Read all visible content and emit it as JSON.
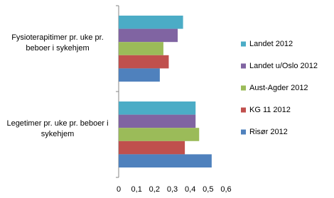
{
  "chart_data": {
    "type": "hbar",
    "categories": [
      "Fysioterapitimer pr. uke pr. beboer i sykehjem",
      "Legetimer pr. uke pr. beboer i sykehjem"
    ],
    "series": [
      {
        "name": "Landet 2012",
        "color": "#4bacc6",
        "values": [
          0.36,
          0.43
        ]
      },
      {
        "name": "Landet u/Oslo 2012",
        "color": "#8064a2",
        "values": [
          0.33,
          0.43
        ]
      },
      {
        "name": "Aust-Agder 2012",
        "color": "#9bbb59",
        "values": [
          0.25,
          0.45
        ]
      },
      {
        "name": "KG 11 2012",
        "color": "#c0504d",
        "values": [
          0.28,
          0.37
        ]
      },
      {
        "name": "Risør 2012",
        "color": "#4f81bd",
        "values": [
          0.23,
          0.52
        ]
      }
    ],
    "xlim": [
      0,
      0.6
    ],
    "xticks": [
      0,
      {
        "value": 0.1,
        "label": "0,1"
      },
      {
        "value": 0.2,
        "label": "0,2"
      },
      {
        "value": 0.3,
        "label": "0,3"
      },
      {
        "value": 0.4,
        "label": "0,4"
      },
      {
        "value": 0.5,
        "label": "0,5"
      },
      {
        "value": 0.6,
        "label": "0,6"
      }
    ],
    "legend": "right"
  }
}
